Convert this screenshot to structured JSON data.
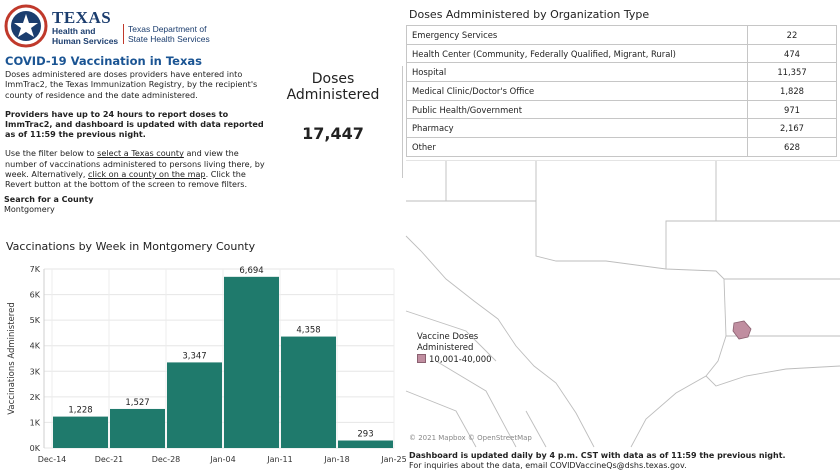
{
  "header": {
    "agency": "TEXAS",
    "agency_sub": "Health and Human Services",
    "department": "Texas Department of State Health Services"
  },
  "intro": {
    "title": "COVID-19 Vaccination in Texas",
    "p1": "Doses administered are doses providers have entered into ImmTrac2, the Texas Immunization Registry, by the recipient's county of residence and the date administered.",
    "p2": "Providers have up to 24 hours to report doses to ImmTrac2, and dashboard is updated  with data reported as of 11:59 the previous night.",
    "p3_a": "Use the filter below to ",
    "p3_link1": "select a Texas county",
    "p3_b": " and view the number of vaccinations administered to persons living there, by week. Alternatively, ",
    "p3_link2": "click on a county on the map",
    "p3_c": ". Click the Revert button at the bottom of the screen to remove filters."
  },
  "search": {
    "label": "Search for a County",
    "value": "Montgomery"
  },
  "kpi": {
    "label": "Doses Administered",
    "value": "17,447"
  },
  "chart_title": "Vaccinations by Week in Montgomery County",
  "chart_data": {
    "type": "bar",
    "categories": [
      "Dec-14",
      "Dec-21",
      "Dec-28",
      "Jan-04",
      "Jan-11",
      "Jan-18"
    ],
    "x_ticks": [
      "Dec-14",
      "Dec-21",
      "Dec-28",
      "Jan-04",
      "Jan-11",
      "Jan-18",
      "Jan-25"
    ],
    "values": [
      1228,
      1527,
      3347,
      6694,
      4358,
      293
    ],
    "value_labels": [
      "1,228",
      "1,527",
      "3,347",
      "6,694",
      "4,358",
      "293"
    ],
    "ylabel": "Vaccinations Administered",
    "ylim": [
      0,
      7000
    ],
    "yticks": [
      0,
      1000,
      2000,
      3000,
      4000,
      5000,
      6000,
      7000
    ],
    "ytick_labels": [
      "0K",
      "1K",
      "2K",
      "3K",
      "4K",
      "5K",
      "6K",
      "7K"
    ],
    "bar_color": "#1f7a6c",
    "grid": true
  },
  "table": {
    "title": "Doses Admministered by Organization Type",
    "rows": [
      {
        "type": "Emergency Services",
        "value": "22"
      },
      {
        "type": "Health Center (Community, Federally Qualified, Migrant, Rural)",
        "value": "474"
      },
      {
        "type": "Hospital",
        "value": "11,357"
      },
      {
        "type": "Medical Clinic/Doctor's Office",
        "value": "1,828"
      },
      {
        "type": "Public Health/Government",
        "value": "971"
      },
      {
        "type": "Pharmacy",
        "value": "2,167"
      },
      {
        "type": "Other",
        "value": "628"
      }
    ]
  },
  "map": {
    "legend_title": "Vaccine Doses Administered",
    "legend_item": "10,001-40,000",
    "legend_color": "#c08ea0",
    "attribution": "© 2021 Mapbox © OpenStreetMap"
  },
  "footer": {
    "line1": "Dashboard is updated daily by 4 p.m. CST with data as of 11:59 the previous night.",
    "line2": "For inquiries about the data, email COVIDVaccineQs@dshs.texas.gov."
  }
}
